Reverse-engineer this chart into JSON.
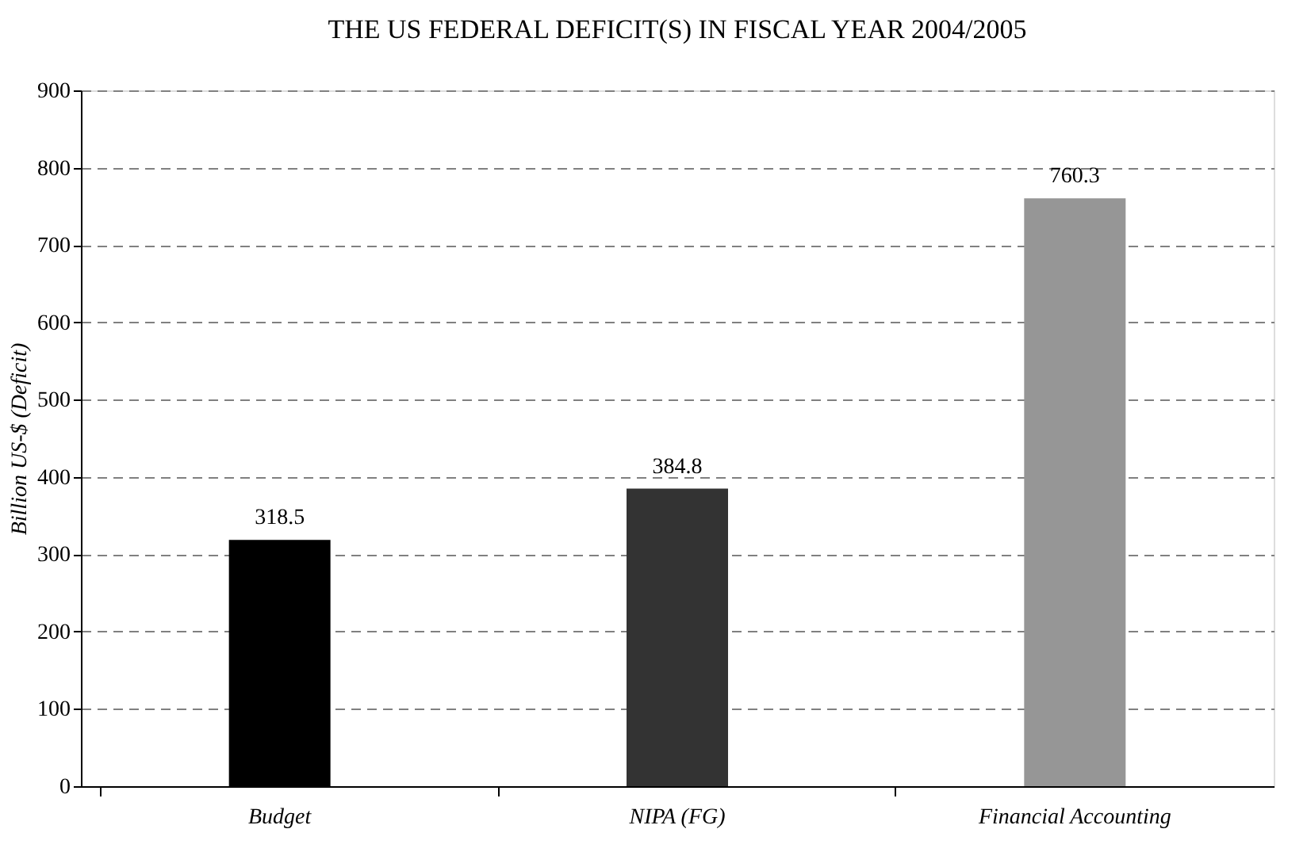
{
  "chart_data": {
    "type": "bar",
    "title": "THE US FEDERAL DEFICIT(S) IN FISCAL YEAR 2004/2005",
    "ylabel": "Billion US-$ (Deficit)",
    "categories": [
      "Budget",
      "NIPA (FG)",
      "Financial Accounting"
    ],
    "values": [
      318.5,
      384.8,
      760.3
    ],
    "colors": [
      "#000000",
      "#333333",
      "#969696"
    ],
    "ylim": [
      0,
      900
    ],
    "yticks": [
      0,
      100,
      200,
      300,
      400,
      500,
      600,
      700,
      800,
      900
    ],
    "grid": "y",
    "line_style": "dashed",
    "data_labels": true
  }
}
